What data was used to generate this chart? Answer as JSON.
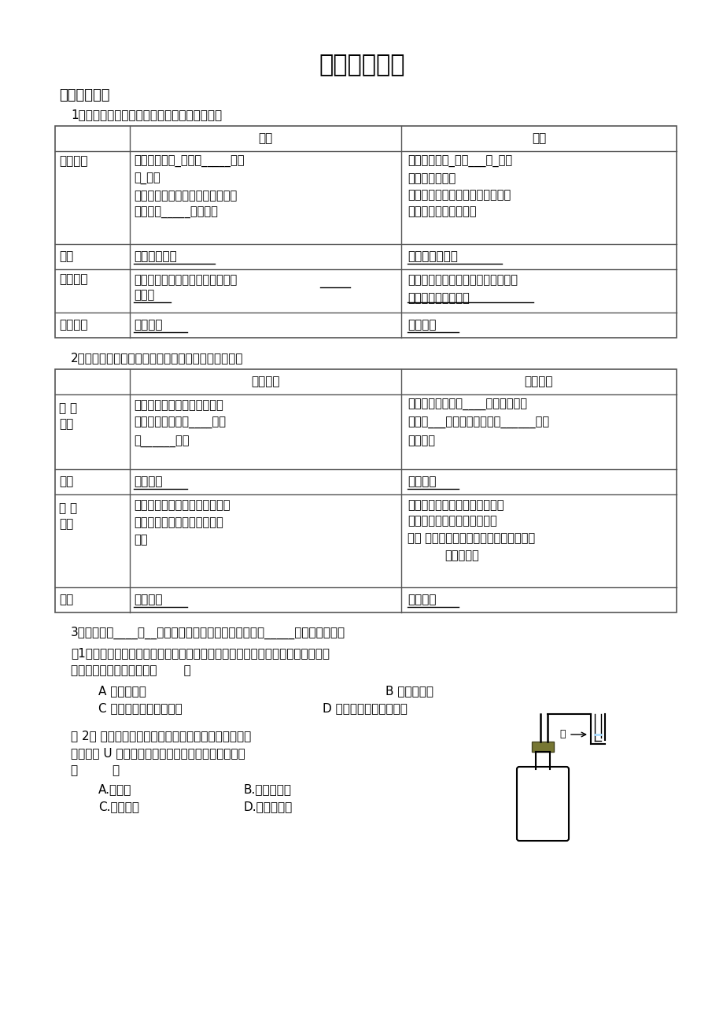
{
  "title": "第五单元复习",
  "subtitle": "基础知识回顾",
  "section1_label": "1、盐酸、硫酸、的物理性质、用途及保存方法",
  "section2_label": "2、氢氧化钠、氢氧化钙的物理性质、用途及保存方法",
  "section3": "3、氧化钙是____色__体。溶于水，并放出大量热。可作_____剂，密封保存。",
  "example1_line1": "例1、现有浓硫酸和浓盐酸两瓶溶液，敞口放置一段时间后（假设水分未蒸发），",
  "example1_line2": "则两溶液的变化正确的是（       ）",
  "example1_A": "A 质量都变小",
  "example1_B": "B 体积都变小",
  "example1_C": "C 溶质的质量分数都变小",
  "example1_D": "D 溶质的质量分数都变大",
  "example2_line1": "例 2、 如图所示，向小试管中分别加入下列一定量的物",
  "example2_line2": "质，右侧 U 型管中的液面未发生明显变化，该物质是",
  "example2_line3": "（         ）",
  "example2_A": "A.浓硫酸",
  "example2_B": "B.氢氧化钠固",
  "example2_C": "C.食盐固体",
  "example2_D": "D.氧化钙固体",
  "water_label": "水",
  "bg_color": "#ffffff",
  "text_color": "#000000",
  "table_border_color": "#555555",
  "font_size_title": 22,
  "font_size_subtitle": 13,
  "font_size_body": 11,
  "font_size_cell": 10.5
}
